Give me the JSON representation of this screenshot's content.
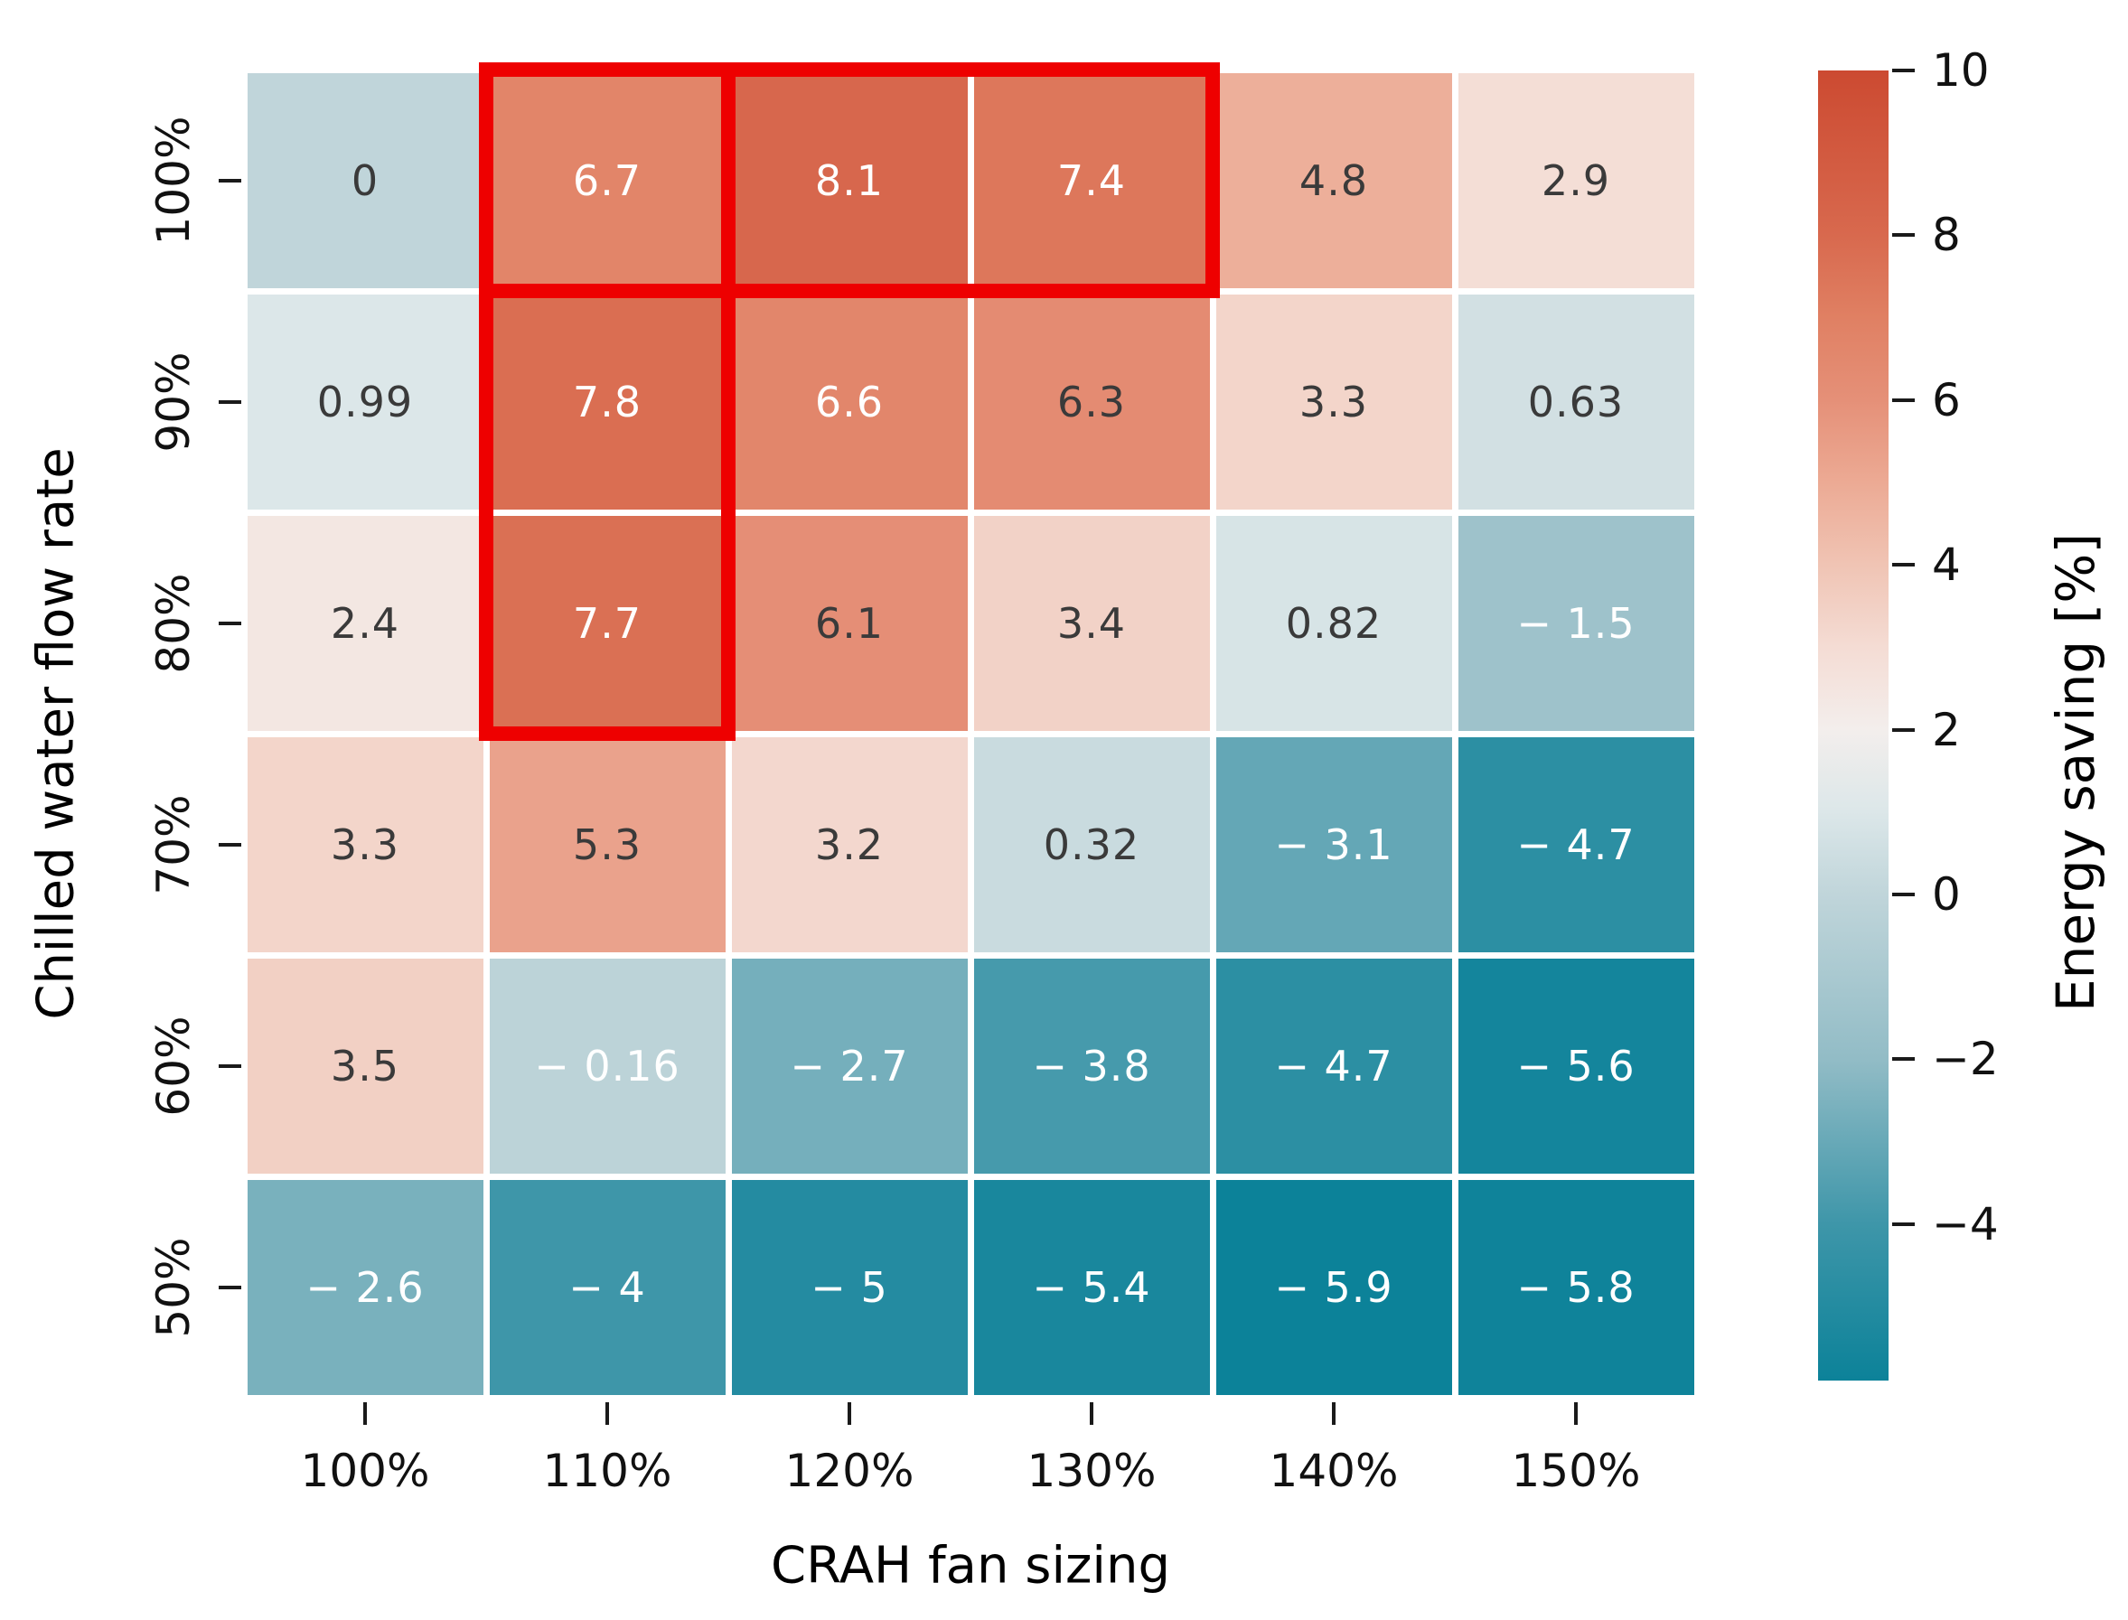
{
  "chart_data": {
    "type": "heatmap",
    "title": "",
    "xlabel": "CRAH fan sizing",
    "ylabel": "Chilled water flow rate",
    "x_categories": [
      "100%",
      "110%",
      "120%",
      "130%",
      "140%",
      "150%"
    ],
    "y_categories": [
      "100%",
      "90%",
      "80%",
      "70%",
      "60%",
      "50%"
    ],
    "values": [
      [
        0,
        6.7,
        8.1,
        7.4,
        4.8,
        2.9
      ],
      [
        0.99,
        7.8,
        6.6,
        6.3,
        3.3,
        0.63
      ],
      [
        2.4,
        7.7,
        6.1,
        3.4,
        0.82,
        -1.5
      ],
      [
        3.3,
        5.3,
        3.2,
        0.32,
        -3.1,
        -4.7
      ],
      [
        3.5,
        -0.16,
        -2.7,
        -3.8,
        -4.7,
        -5.6
      ],
      [
        -2.6,
        -4,
        -5,
        -5.4,
        -5.9,
        -5.8
      ]
    ],
    "cell_labels": [
      [
        "0",
        "6.7",
        "8.1",
        "7.4",
        "4.8",
        "2.9"
      ],
      [
        "0.99",
        "7.8",
        "6.6",
        "6.3",
        "3.3",
        "0.63"
      ],
      [
        "2.4",
        "7.7",
        "6.1",
        "3.4",
        "0.82",
        "− 1.5"
      ],
      [
        "3.3",
        "5.3",
        "3.2",
        "0.32",
        "− 3.1",
        "− 4.7"
      ],
      [
        "3.5",
        "− 0.16",
        "− 2.7",
        "− 3.8",
        "− 4.7",
        "− 5.6"
      ],
      [
        "− 2.6",
        "− 4",
        "− 5",
        "− 5.4",
        "− 5.9",
        "− 5.8"
      ]
    ],
    "cell_text_colors": [
      [
        "dark",
        "white",
        "white",
        "white",
        "dark",
        "dark"
      ],
      [
        "dark",
        "white",
        "white",
        "dark",
        "dark",
        "dark"
      ],
      [
        "dark",
        "white",
        "dark",
        "dark",
        "dark",
        "white"
      ],
      [
        "dark",
        "dark",
        "dark",
        "dark",
        "white",
        "white"
      ],
      [
        "dark",
        "white",
        "white",
        "white",
        "white",
        "white"
      ],
      [
        "white",
        "white",
        "white",
        "white",
        "white",
        "white"
      ]
    ],
    "annotation_dark_color": "#3a3a3a",
    "annotation_light_color": "#ffffff",
    "grid_gap_color": "#ffffff",
    "legend_position": "right",
    "grid": "off",
    "colorbar": {
      "label": "Energy saving [%]",
      "vmax": 10,
      "vmin": -5.9,
      "ticks": [
        {
          "label": "10",
          "value": 10
        },
        {
          "label": "8",
          "value": 8
        },
        {
          "label": "6",
          "value": 6
        },
        {
          "label": "4",
          "value": 4
        },
        {
          "label": "2",
          "value": 2
        },
        {
          "label": "0",
          "value": 0
        },
        {
          "label": "−2",
          "value": -2
        },
        {
          "label": "−4",
          "value": -4
        }
      ],
      "gradient_stops": [
        {
          "v": -5.9,
          "color": "#0c8299"
        },
        {
          "v": -4,
          "color": "#3e96a9"
        },
        {
          "v": -2,
          "color": "#92bcc6"
        },
        {
          "v": 0,
          "color": "#c0d5da"
        },
        {
          "v": 1,
          "color": "#dce7e9"
        },
        {
          "v": 2,
          "color": "#f3eeec"
        },
        {
          "v": 3,
          "color": "#f4dcd4"
        },
        {
          "v": 4,
          "color": "#f0c4b4"
        },
        {
          "v": 5,
          "color": "#ecaa94"
        },
        {
          "v": 6,
          "color": "#e59078"
        },
        {
          "v": 7,
          "color": "#e08063"
        },
        {
          "v": 8,
          "color": "#d8694e"
        },
        {
          "v": 10,
          "color": "#cc4a31"
        }
      ]
    },
    "highlights": [
      {
        "row": 0,
        "col": 1,
        "row_span": 1,
        "col_span": 1
      },
      {
        "row": 0,
        "col": 2,
        "row_span": 1,
        "col_span": 2
      },
      {
        "row": 1,
        "col": 1,
        "row_span": 2,
        "col_span": 1
      }
    ],
    "highlight_color": "#ee0000"
  }
}
